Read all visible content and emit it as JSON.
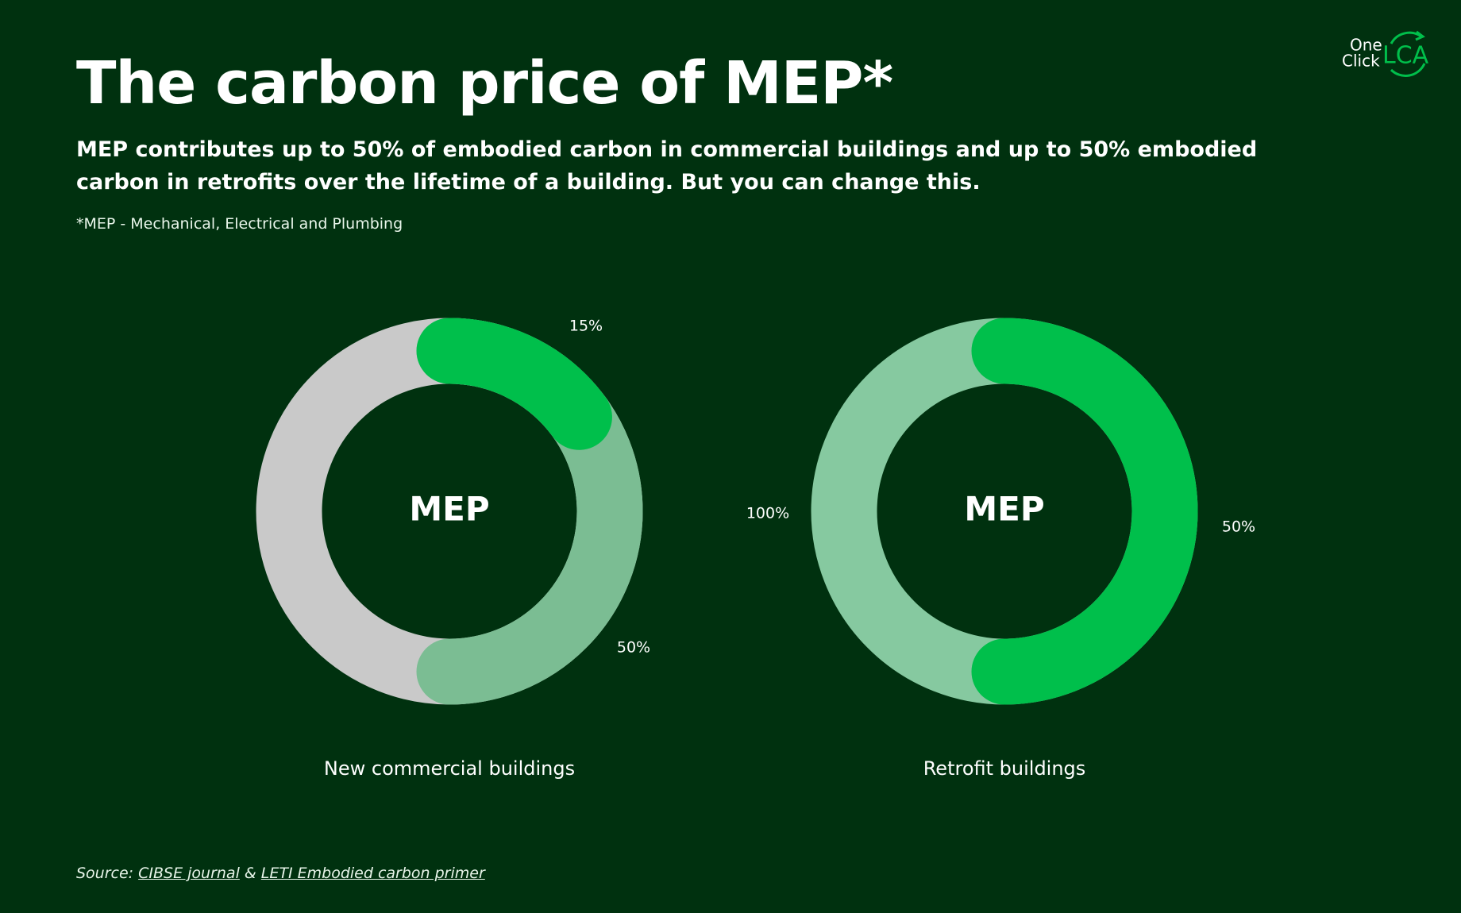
{
  "title": "The carbon price of MEP*",
  "subtitle": "MEP contributes up to 50% of embodied carbon in commercial buildings and up to 50% embodied carbon in retrofits over the lifetime of a building. But you can change this.",
  "footnote": "*MEP - Mechanical, Electrical and Plumbing",
  "source": {
    "prefix": "Source:",
    "link1": "CIBSE journal",
    "separator": "&",
    "link2": "LETI Embodied carbon primer"
  },
  "logo": {
    "line1": "One",
    "line2": "Click",
    "mark": "LCA"
  },
  "chart_data": [
    {
      "type": "donut",
      "center_label": "MEP",
      "caption": "New commercial buildings",
      "values": [
        50,
        15
      ],
      "value_labels": [
        "50%",
        "15%"
      ],
      "colors": [
        "#7bbd93",
        "#00bf4b"
      ],
      "track_color": "#c9c9c9"
    },
    {
      "type": "donut",
      "center_label": "MEP",
      "caption": "Retrofit buildings",
      "values": [
        100,
        50
      ],
      "value_labels": [
        "100%",
        "50%"
      ],
      "colors": [
        "#86c9a0",
        "#00bf4b"
      ],
      "track_color": null
    }
  ]
}
